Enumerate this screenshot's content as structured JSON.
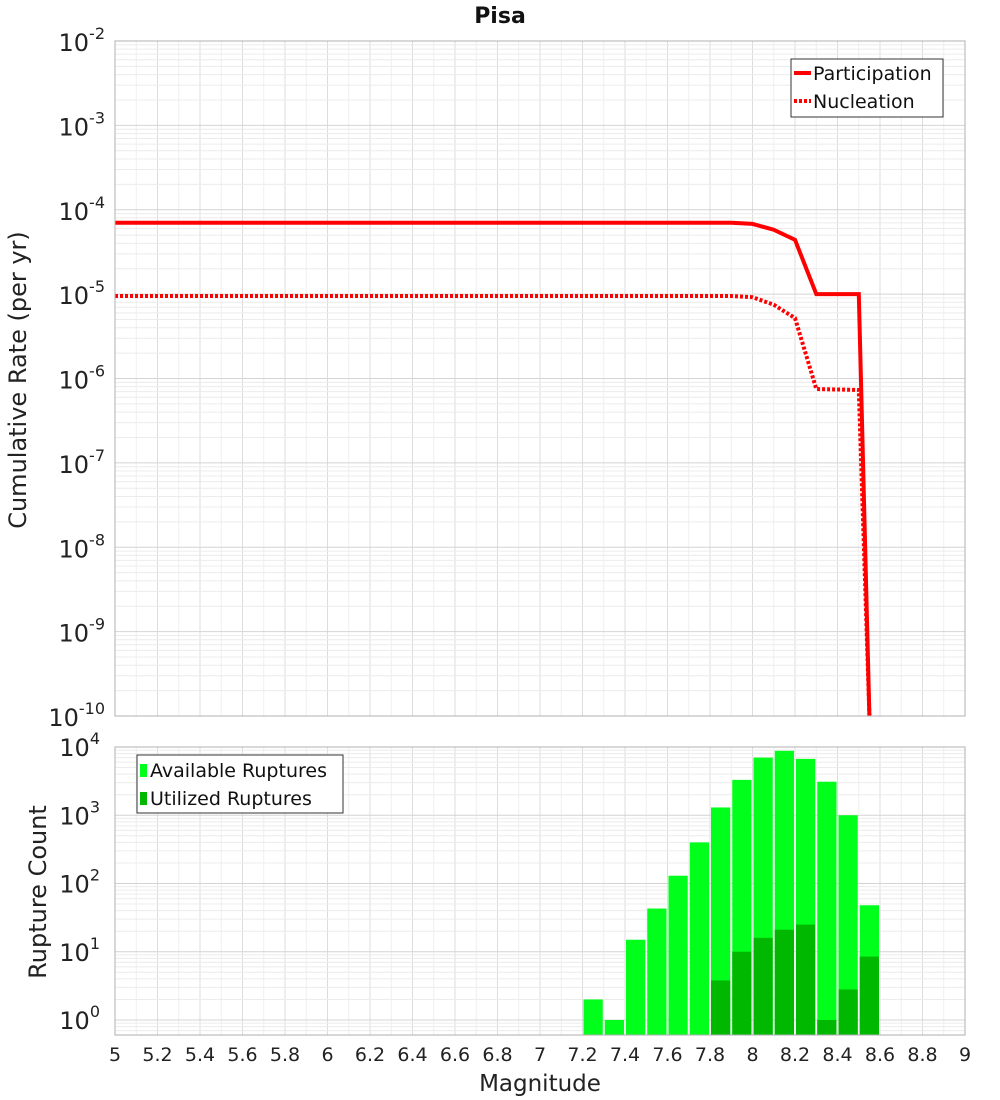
{
  "chart_data": [
    {
      "type": "line",
      "title": "Pisa",
      "xlabel": "",
      "ylabel": "Cumulative Rate (per yr)",
      "yscale": "log",
      "xlim": [
        5,
        9
      ],
      "ylim_exp": [
        -10,
        -2
      ],
      "y_tick_exponents": [
        -2,
        -3,
        -4,
        -5,
        -6,
        -7,
        -8,
        -9,
        -10
      ],
      "y_tick_base": "10",
      "grid": true,
      "legend_position": "top-right",
      "series": [
        {
          "name": "Participation",
          "style": "solid",
          "color": "#ff0000",
          "x": [
            5.0,
            5.5,
            6.0,
            6.5,
            7.0,
            7.5,
            7.9,
            8.0,
            8.1,
            8.2,
            8.3,
            8.4,
            8.5,
            8.55
          ],
          "y": [
            7e-05,
            7e-05,
            7e-05,
            7e-05,
            7e-05,
            7e-05,
            7e-05,
            6.8e-05,
            5.8e-05,
            4.4e-05,
            1e-05,
            1e-05,
            1e-05,
            1e-10
          ]
        },
        {
          "name": "Nucleation",
          "style": "dotted",
          "color": "#ff0000",
          "x": [
            5.0,
            5.5,
            6.0,
            6.5,
            7.0,
            7.5,
            7.9,
            8.0,
            8.1,
            8.2,
            8.3,
            8.4,
            8.5,
            8.55
          ],
          "y": [
            9.5e-06,
            9.5e-06,
            9.5e-06,
            9.5e-06,
            9.5e-06,
            9.5e-06,
            9.5e-06,
            9.2e-06,
            7.5e-06,
            5.2e-06,
            7.5e-07,
            7.4e-07,
            7.3e-07,
            1e-10
          ]
        }
      ]
    },
    {
      "type": "bar",
      "title": "",
      "xlabel": "Magnitude",
      "ylabel": "Rupture Count",
      "yscale": "log",
      "xlim": [
        5,
        9
      ],
      "x_ticks": [
        "5",
        "5.2",
        "5.4",
        "5.6",
        "5.8",
        "6",
        "6.2",
        "6.4",
        "6.6",
        "6.8",
        "7",
        "7.2",
        "7.4",
        "7.6",
        "7.8",
        "8",
        "8.2",
        "8.4",
        "8.6",
        "8.8",
        "9"
      ],
      "y_tick_exponents": [
        4,
        3,
        2,
        1,
        0
      ],
      "y_tick_base": "10",
      "grid": true,
      "legend_position": "top-left",
      "bin_width": 0.1,
      "series": [
        {
          "name": "Available Ruptures",
          "color": "#00ff1a",
          "x": [
            7.25,
            7.35,
            7.45,
            7.55,
            7.65,
            7.75,
            7.85,
            7.95,
            8.05,
            8.15,
            8.25,
            8.35,
            8.45,
            8.55
          ],
          "values": [
            2,
            1,
            15,
            43,
            130,
            400,
            1300,
            3300,
            7000,
            8800,
            6700,
            3100,
            1000,
            48
          ]
        },
        {
          "name": "Utilized Ruptures",
          "color": "#00b800",
          "x": [
            7.85,
            7.95,
            8.05,
            8.15,
            8.25,
            8.35,
            8.45,
            8.55
          ],
          "values": [
            3.8,
            10,
            16,
            21,
            25,
            1,
            2.8,
            8.5
          ]
        }
      ]
    }
  ]
}
